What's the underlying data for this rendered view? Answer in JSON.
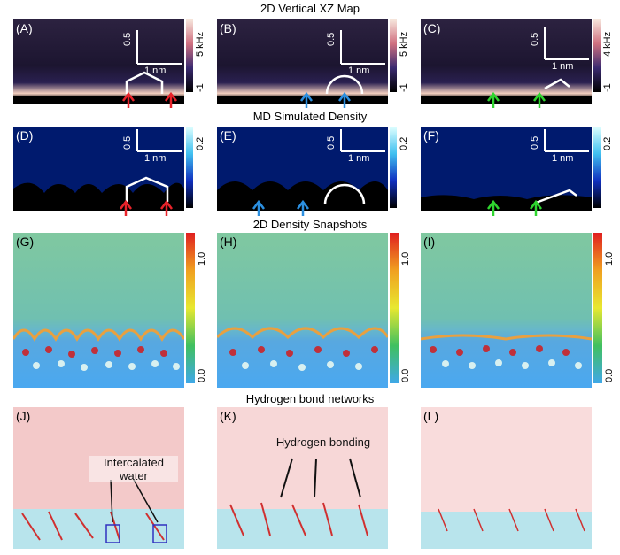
{
  "rows": {
    "row1_title": "2D Vertical XZ Map",
    "row2_title": "MD Simulated Density",
    "row3_title": "2D Density Snapshots",
    "row4_title": "Hydrogen bond networks"
  },
  "panels": {
    "A": "(A)",
    "B": "(B)",
    "C": "(C)",
    "D": "(D)",
    "E": "(E)",
    "F": "(F)",
    "G": "(G)",
    "H": "(H)",
    "I": "(I)",
    "J": "(J)",
    "K": "(K)",
    "L": "(L)"
  },
  "scalebars": {
    "horizontal": "1 nm",
    "vertical": "0.5"
  },
  "colorbars": {
    "A_max": "5 kHz",
    "A_min": "-1",
    "B_max": "5 kHz",
    "B_min": "-1",
    "C_max": "4 kHz",
    "C_min": "-1",
    "D_max": "0.2",
    "E_max": "0.2",
    "F_max": "0.2",
    "G_max": "1.0",
    "G_min": "0.0",
    "H_max": "1.0",
    "H_min": "0.0",
    "I_max": "1.0",
    "I_min": "0.0"
  },
  "annotations": {
    "intercalated_line1": "Intercalated",
    "intercalated_line2": "water",
    "hbond": "Hydrogen bonding"
  },
  "colors": {
    "red_arrow": "#e8232a",
    "blue_arrow": "#2b8fe0",
    "green_arrow": "#2fd52f"
  }
}
